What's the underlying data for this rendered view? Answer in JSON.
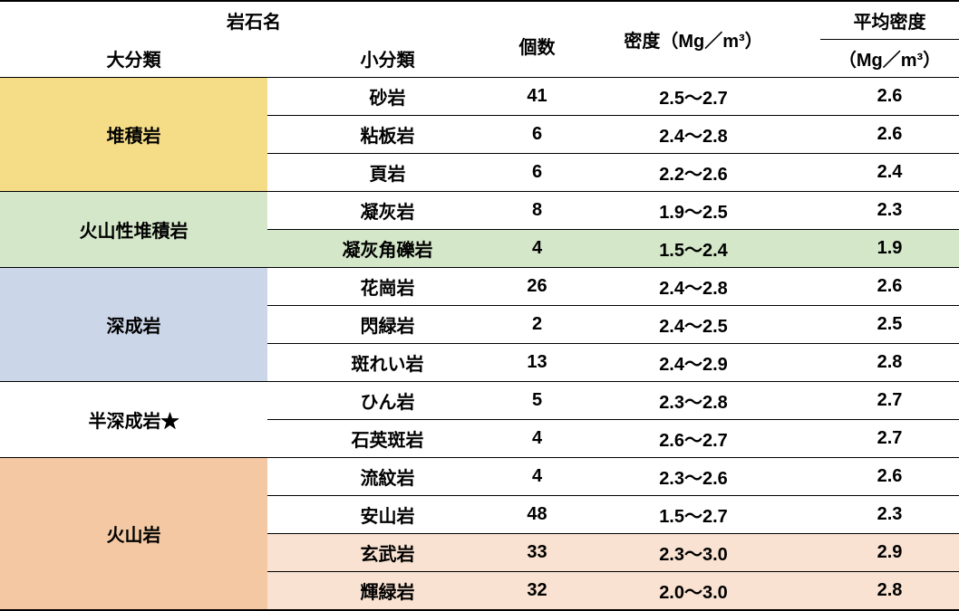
{
  "header": {
    "rockNameGroup": "岩石名",
    "majorCategory": "大分類",
    "minorCategory": "小分類",
    "count": "個数",
    "density": "密度（Mg／m³）",
    "avgDensityTitle": "平均密度",
    "avgDensityUnit": "（Mg／m³）"
  },
  "categories": [
    {
      "label": "堆積岩",
      "bg": "#f5dd87",
      "rows": [
        {
          "sub": "砂岩",
          "count": "41",
          "range": "2.5～2.7",
          "avg": "2.6",
          "hl": false
        },
        {
          "sub": "粘板岩",
          "count": "6",
          "range": "2.4～2.8",
          "avg": "2.6",
          "hl": false
        },
        {
          "sub": "頁岩",
          "count": "6",
          "range": "2.2～2.6",
          "avg": "2.4",
          "hl": false
        }
      ]
    },
    {
      "label": "火山性堆積岩",
      "bg": "#d4e7c9",
      "hlColor": "#d4e7c9",
      "rows": [
        {
          "sub": "凝灰岩",
          "count": "8",
          "range": "1.9～2.5",
          "avg": "2.3",
          "hl": false
        },
        {
          "sub": "凝灰角礫岩",
          "count": "4",
          "range": "1.5～2.4",
          "avg": "1.9",
          "hl": true
        }
      ]
    },
    {
      "label": "深成岩",
      "bg": "#cbd6e8",
      "rows": [
        {
          "sub": "花崗岩",
          "count": "26",
          "range": "2.4～2.8",
          "avg": "2.6",
          "hl": false
        },
        {
          "sub": "閃緑岩",
          "count": "2",
          "range": "2.4～2.5",
          "avg": "2.5",
          "hl": false
        },
        {
          "sub": "斑れい岩",
          "count": "13",
          "range": "2.4～2.9",
          "avg": "2.8",
          "hl": false
        }
      ]
    },
    {
      "label": "半深成岩★",
      "bg": "#ffffff",
      "rows": [
        {
          "sub": "ひん岩",
          "count": "5",
          "range": "2.3～2.8",
          "avg": "2.7",
          "hl": false
        },
        {
          "sub": "石英斑岩",
          "count": "4",
          "range": "2.6～2.7",
          "avg": "2.7",
          "hl": false
        }
      ]
    },
    {
      "label": "火山岩",
      "bg": "#f3c8a3",
      "hlColor": "#f9e2d1",
      "rows": [
        {
          "sub": "流紋岩",
          "count": "4",
          "range": "2.3～2.6",
          "avg": "2.6",
          "hl": false
        },
        {
          "sub": "安山岩",
          "count": "48",
          "range": "1.5～2.7",
          "avg": "2.3",
          "hl": false
        },
        {
          "sub": "玄武岩",
          "count": "33",
          "range": "2.3～3.0",
          "avg": "2.9",
          "hl": true
        },
        {
          "sub": "輝緑岩",
          "count": "32",
          "range": "2.0～3.0",
          "avg": "2.8",
          "hl": true
        }
      ]
    }
  ]
}
